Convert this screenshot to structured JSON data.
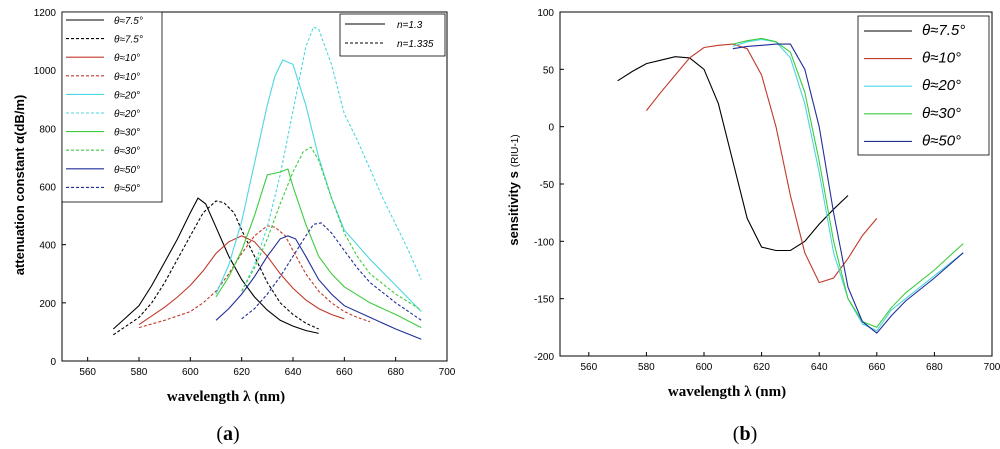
{
  "chart_data": [
    {
      "id": "a",
      "type": "line",
      "caption_open": "(",
      "caption_letter": "a",
      "caption_close": ")",
      "xlabel": "wavelength λ (nm)",
      "ylabel": "attenuation constant α(dB/m)",
      "xlim": [
        550,
        700
      ],
      "ylim": [
        0,
        1200
      ],
      "xticks": [
        "560",
        "580",
        "600",
        "620",
        "640",
        "660",
        "680",
        "700"
      ],
      "yticks": [
        "0",
        "200",
        "400",
        "600",
        "800",
        "1000",
        "1200"
      ],
      "legend_position": "top-left",
      "legend2_position": "top-right",
      "legend2": [
        {
          "label": "n=1.3",
          "dash": "solid"
        },
        {
          "label": "n=1.335",
          "dash": "dashed"
        }
      ],
      "series": [
        {
          "name": "θ≈7.5°",
          "color": "#000000",
          "dash": "solid",
          "x": [
            570,
            575,
            580,
            585,
            590,
            595,
            600,
            603,
            606,
            610,
            615,
            620,
            625,
            630,
            635,
            640,
            645,
            650
          ],
          "y": [
            110,
            150,
            190,
            260,
            340,
            420,
            510,
            560,
            540,
            460,
            360,
            280,
            220,
            175,
            140,
            120,
            105,
            95
          ]
        },
        {
          "name": "θ≈7.5°",
          "color": "#000000",
          "dash": "dashed",
          "x": [
            570,
            575,
            580,
            585,
            590,
            595,
            600,
            605,
            610,
            613,
            617,
            620,
            625,
            630,
            635,
            640,
            645,
            650
          ],
          "y": [
            90,
            120,
            150,
            200,
            270,
            350,
            430,
            510,
            550,
            545,
            510,
            450,
            360,
            270,
            200,
            160,
            130,
            110
          ]
        },
        {
          "name": "θ≈10°",
          "color": "#c0392b",
          "dash": "solid",
          "x": [
            580,
            585,
            590,
            595,
            600,
            605,
            610,
            615,
            620,
            625,
            630,
            635,
            640,
            645,
            650,
            655,
            660
          ],
          "y": [
            125,
            155,
            185,
            220,
            260,
            310,
            370,
            410,
            430,
            410,
            360,
            300,
            250,
            210,
            180,
            160,
            145
          ]
        },
        {
          "name": "θ≈10°",
          "color": "#c0392b",
          "dash": "dashed",
          "x": [
            580,
            590,
            600,
            605,
            610,
            615,
            620,
            625,
            630,
            633,
            637,
            640,
            645,
            650,
            655,
            660,
            665,
            670
          ],
          "y": [
            115,
            140,
            170,
            200,
            240,
            300,
            370,
            430,
            465,
            460,
            430,
            380,
            300,
            240,
            200,
            170,
            150,
            135
          ]
        },
        {
          "name": "θ≈20°",
          "color": "#4dd6e0",
          "dash": "solid",
          "x": [
            610,
            615,
            620,
            625,
            630,
            633,
            636,
            640,
            645,
            650,
            655,
            660,
            670,
            680,
            690
          ],
          "y": [
            230,
            330,
            480,
            680,
            880,
            980,
            1035,
            1020,
            880,
            700,
            560,
            450,
            350,
            260,
            170
          ]
        },
        {
          "name": "θ≈20°",
          "color": "#4dd6e0",
          "dash": "dashed",
          "x": [
            620,
            625,
            630,
            635,
            640,
            645,
            648,
            650,
            655,
            660,
            665,
            670,
            675,
            680,
            685,
            690
          ],
          "y": [
            240,
            330,
            460,
            640,
            860,
            1080,
            1148,
            1140,
            1020,
            850,
            760,
            660,
            560,
            470,
            380,
            280
          ]
        },
        {
          "name": "θ≈30°",
          "color": "#3dcc3d",
          "dash": "solid",
          "x": [
            610,
            615,
            620,
            625,
            630,
            635,
            638,
            640,
            645,
            650,
            655,
            660,
            670,
            680,
            690
          ],
          "y": [
            220,
            290,
            380,
            500,
            640,
            650,
            660,
            600,
            470,
            360,
            300,
            255,
            200,
            160,
            115
          ]
        },
        {
          "name": "θ≈30°",
          "color": "#3dcc3d",
          "dash": "dashed",
          "x": [
            620,
            625,
            630,
            635,
            640,
            644,
            647,
            650,
            655,
            660,
            665,
            670,
            680,
            690
          ],
          "y": [
            240,
            320,
            420,
            540,
            650,
            720,
            735,
            690,
            560,
            440,
            360,
            300,
            230,
            175
          ]
        },
        {
          "name": "θ≈50°",
          "color": "#1f2e99",
          "dash": "solid",
          "x": [
            610,
            615,
            620,
            625,
            630,
            635,
            638,
            641,
            645,
            650,
            655,
            660,
            670,
            680,
            690
          ],
          "y": [
            140,
            180,
            230,
            290,
            360,
            420,
            430,
            420,
            360,
            280,
            230,
            190,
            150,
            110,
            75
          ]
        },
        {
          "name": "θ≈50°",
          "color": "#1f2e99",
          "dash": "dashed",
          "x": [
            620,
            625,
            630,
            635,
            640,
            645,
            648,
            651,
            655,
            660,
            665,
            670,
            680,
            690
          ],
          "y": [
            145,
            180,
            230,
            290,
            360,
            430,
            470,
            475,
            440,
            380,
            320,
            270,
            200,
            140
          ]
        }
      ]
    },
    {
      "id": "b",
      "type": "line",
      "caption_open": "(",
      "caption_letter": "b",
      "caption_close": ")",
      "xlabel": "wavelength λ (nm)",
      "ylabel": "sensitivity s",
      "ylabel_unit": "(RIU-1)",
      "xlim": [
        550,
        700
      ],
      "ylim": [
        -200,
        100
      ],
      "xticks": [
        "560",
        "580",
        "600",
        "620",
        "640",
        "660",
        "680",
        "700"
      ],
      "yticks": [
        "100",
        "50",
        "0",
        "-50",
        "-100",
        "-150",
        "-200"
      ],
      "legend_position": "top-right",
      "series": [
        {
          "name": "θ≈7.5°",
          "color": "#000000",
          "dash": "solid",
          "x": [
            570,
            575,
            580,
            585,
            590,
            595,
            600,
            605,
            610,
            615,
            620,
            625,
            630,
            635,
            640,
            645,
            650
          ],
          "y": [
            40,
            48,
            55,
            58,
            61,
            60,
            50,
            20,
            -30,
            -80,
            -105,
            -108,
            -108,
            -100,
            -85,
            -72,
            -60
          ]
        },
        {
          "name": "θ≈10°",
          "color": "#c0392b",
          "dash": "solid",
          "x": [
            580,
            585,
            590,
            595,
            600,
            605,
            610,
            615,
            620,
            625,
            630,
            635,
            640,
            645,
            650,
            655,
            660
          ],
          "y": [
            14,
            30,
            45,
            60,
            69,
            71,
            72,
            68,
            45,
            0,
            -60,
            -110,
            -136,
            -132,
            -115,
            -95,
            -80
          ]
        },
        {
          "name": "θ≈20°",
          "color": "#4dd6e0",
          "dash": "solid",
          "x": [
            610,
            615,
            620,
            625,
            630,
            635,
            640,
            645,
            650,
            655,
            660,
            665,
            670,
            680,
            690
          ],
          "y": [
            70,
            74,
            76,
            74,
            60,
            20,
            -40,
            -110,
            -150,
            -172,
            -178,
            -160,
            -150,
            -130,
            -110
          ]
        },
        {
          "name": "θ≈30°",
          "color": "#3dcc3d",
          "dash": "solid",
          "x": [
            610,
            615,
            620,
            625,
            630,
            635,
            640,
            645,
            650,
            655,
            660,
            665,
            670,
            680,
            690
          ],
          "y": [
            72,
            75,
            77,
            74,
            65,
            30,
            -30,
            -100,
            -150,
            -170,
            -175,
            -158,
            -145,
            -125,
            -102
          ]
        },
        {
          "name": "θ≈50°",
          "color": "#1f2e99",
          "dash": "solid",
          "x": [
            610,
            615,
            620,
            625,
            630,
            635,
            640,
            645,
            650,
            655,
            660,
            665,
            670,
            680,
            690
          ],
          "y": [
            68,
            70,
            71,
            72,
            72,
            50,
            0,
            -75,
            -140,
            -170,
            -180,
            -165,
            -152,
            -132,
            -110
          ]
        }
      ]
    }
  ]
}
